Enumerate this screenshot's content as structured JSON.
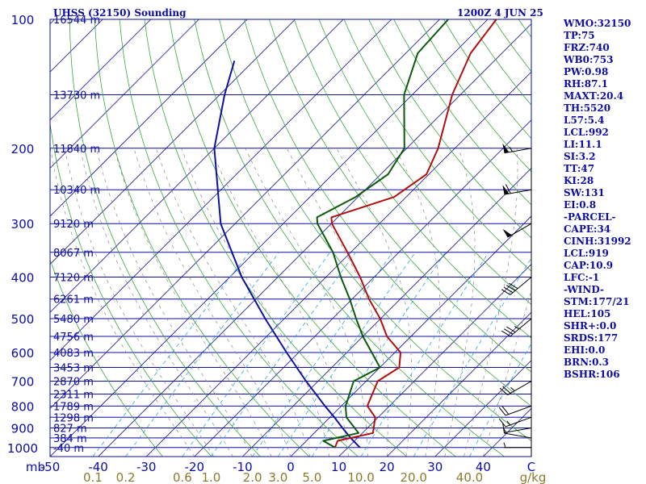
{
  "header": {
    "station": "UHSS (32150) Sounding",
    "time": "1200Z  4 JUN 25"
  },
  "indices": [
    "WMO:32150",
    "TP:75",
    "FRZ:740",
    "WB0:753",
    "PW:0.98",
    "RH:87.1",
    "MAXT:20.4",
    "TH:5520",
    "L57:5.4",
    "LCL:992",
    "LI:11.1",
    "SI:3.2",
    "TT:47",
    "KI:28",
    "SW:131",
    "EI:0.8",
    "-PARCEL-",
    "CAPE:34",
    "CINH:31992",
    "LCL:919",
    "CAP:10.9",
    "LFC:-1",
    "-WIND-",
    "STM:177/21",
    "HEL:105",
    "SHR+:0.0",
    "SRDS:177",
    "EHI:0.0",
    "BRN:0.3",
    "BSHR:106"
  ],
  "colors": {
    "isobar": "#0d0da0",
    "isotherm": "#0d0da0",
    "dry_adiabat": "#3aa83a",
    "moist_adiabat": "#8a8a8a",
    "mixing_ratio": "#2aa8d8",
    "temperature": "#b01010",
    "dewpoint": "#0a5a0a",
    "parcel": "#1010a0",
    "label_blue": "#0d0da0",
    "label_gold": "#8a7a2a",
    "wind": "#000000"
  },
  "chart_data": {
    "type": "skew-t",
    "pressure_unit_label": "mb",
    "mixing_unit_label": "g/kg",
    "pressure_ticks": [
      100,
      200,
      300,
      400,
      500,
      600,
      700,
      800,
      900,
      1000
    ],
    "temperature_ticks": [
      "-50",
      "-40",
      "-30",
      "-20",
      "-10",
      "0",
      "10",
      "20",
      "30",
      "40",
      "C"
    ],
    "temperature_tick_values": [
      -50,
      -40,
      -30,
      -20,
      -10,
      0,
      10,
      20,
      30,
      40,
      50
    ],
    "mixing_ratio_labels": [
      "0.1",
      "0.2",
      "0.6",
      "1.0",
      "2.0",
      "3.0",
      "5.0",
      "10.0",
      "20.0",
      "40.0"
    ],
    "mixing_ratio_values": [
      0.1,
      0.2,
      0.6,
      1.0,
      2.0,
      3.0,
      5.0,
      10.0,
      20.0,
      40.0
    ],
    "heights": [
      {
        "p": 100,
        "label": "16544 m"
      },
      {
        "p": 150,
        "label": "13730 m"
      },
      {
        "p": 200,
        "label": "11840 m"
      },
      {
        "p": 250,
        "label": "10340 m"
      },
      {
        "p": 300,
        "label": "9120 m"
      },
      {
        "p": 350,
        "label": "8067 m"
      },
      {
        "p": 400,
        "label": "7120 m"
      },
      {
        "p": 450,
        "label": "6261 m"
      },
      {
        "p": 500,
        "label": "5480 m"
      },
      {
        "p": 550,
        "label": "4756 m"
      },
      {
        "p": 600,
        "label": "4083 m"
      },
      {
        "p": 650,
        "label": "3453 m"
      },
      {
        "p": 700,
        "label": "2870 m"
      },
      {
        "p": 750,
        "label": "2311 m"
      },
      {
        "p": 800,
        "label": "1789 m"
      },
      {
        "p": 850,
        "label": "1298 m"
      },
      {
        "p": 900,
        "label": "827 m"
      },
      {
        "p": 950,
        "label": "384 m"
      },
      {
        "p": 1000,
        "label": "-40 m"
      }
    ],
    "temperature": [
      [
        1000,
        7.3
      ],
      [
        965,
        6.5
      ],
      [
        925,
        12.2
      ],
      [
        850,
        9.4
      ],
      [
        800,
        5.4
      ],
      [
        700,
        2.4
      ],
      [
        650,
        4.0
      ],
      [
        600,
        1.2
      ],
      [
        550,
        -5.0
      ],
      [
        500,
        -10.1
      ],
      [
        450,
        -16.5
      ],
      [
        400,
        -22.9
      ],
      [
        350,
        -30.7
      ],
      [
        300,
        -39.9
      ],
      [
        290,
        -41.3
      ],
      [
        260,
        -32.5
      ],
      [
        230,
        -30.5
      ],
      [
        200,
        -33.5
      ],
      [
        150,
        -41.7
      ],
      [
        120,
        -46.5
      ],
      [
        100,
        -48.2
      ]
    ],
    "dewpoint": [
      [
        1000,
        7.3
      ],
      [
        965,
        3.5
      ],
      [
        925,
        9.2
      ],
      [
        850,
        3.4
      ],
      [
        800,
        0.9
      ],
      [
        700,
        -2.6
      ],
      [
        650,
        0.0
      ],
      [
        600,
        -4.8
      ],
      [
        550,
        -10.0
      ],
      [
        500,
        -15.1
      ],
      [
        450,
        -20.5
      ],
      [
        400,
        -26.9
      ],
      [
        350,
        -33.7
      ],
      [
        300,
        -42.9
      ],
      [
        290,
        -44.3
      ],
      [
        260,
        -40.5
      ],
      [
        230,
        -38.5
      ],
      [
        200,
        -40.5
      ],
      [
        150,
        -51.7
      ],
      [
        120,
        -57.5
      ],
      [
        100,
        -58.2
      ]
    ],
    "parcel": [
      [
        1000,
        12.5
      ],
      [
        950,
        8.6
      ],
      [
        900,
        4.8
      ],
      [
        850,
        0.9
      ],
      [
        800,
        -3.4
      ],
      [
        700,
        -12.5
      ],
      [
        600,
        -22.5
      ],
      [
        500,
        -34.0
      ],
      [
        400,
        -47.5
      ],
      [
        300,
        -63.0
      ],
      [
        200,
        -80.0
      ],
      [
        150,
        -89.0
      ],
      [
        125,
        -94.0
      ]
    ],
    "wind_barbs": [
      {
        "p": 1000,
        "dir": 270,
        "spd": 5
      },
      {
        "p": 950,
        "dir": 280,
        "spd": 10
      },
      {
        "p": 900,
        "dir": 260,
        "spd": 5
      },
      {
        "p": 850,
        "dir": 250,
        "spd": 15
      },
      {
        "p": 800,
        "dir": 250,
        "spd": 20
      },
      {
        "p": 700,
        "dir": 240,
        "spd": 25
      },
      {
        "p": 500,
        "dir": 230,
        "spd": 35
      },
      {
        "p": 400,
        "dir": 230,
        "spd": 40
      },
      {
        "p": 300,
        "dir": 240,
        "spd": 50
      },
      {
        "p": 250,
        "dir": 260,
        "spd": 60
      },
      {
        "p": 200,
        "dir": 260,
        "spd": 55
      }
    ]
  }
}
